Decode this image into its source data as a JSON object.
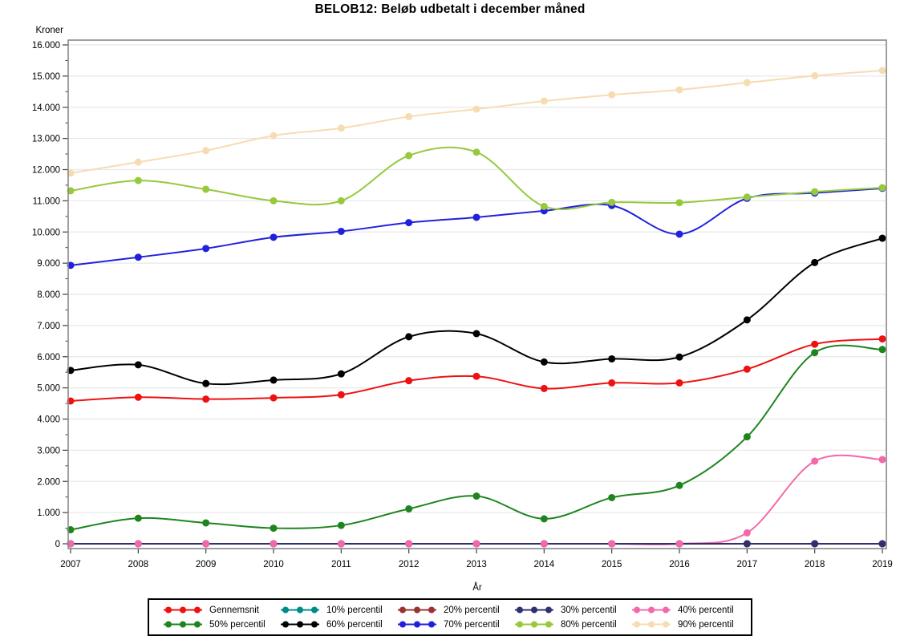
{
  "page": {
    "title": "BELOB12: Beløb udbetalt i december måned"
  },
  "chart_data": {
    "type": "line",
    "title": "BELOB12: Beløb udbetalt i december måned",
    "ylabel": "Kroner",
    "xlabel": "År",
    "x": [
      2007,
      2008,
      2009,
      2010,
      2011,
      2012,
      2013,
      2014,
      2015,
      2016,
      2017,
      2018,
      2019
    ],
    "x_tick_labels": [
      "2007",
      "2008",
      "2009",
      "2010",
      "2011",
      "2012",
      "2013",
      "2014",
      "2015",
      "2016",
      "2017",
      "2018",
      "2019"
    ],
    "ylim": [
      0,
      16000
    ],
    "ytick_step": 1000,
    "ytick_minor_step": 500,
    "ytick_labels": [
      "0",
      "1.000",
      "2.000",
      "3.000",
      "4.000",
      "5.000",
      "6.000",
      "7.000",
      "8.000",
      "9.000",
      "10.000",
      "11.000",
      "12.000",
      "13.000",
      "14.000",
      "15.000",
      "16.000"
    ],
    "grid": true,
    "legend_position": "bottom",
    "smoothing": "spline",
    "series": [
      {
        "name": "Gennemsnit",
        "color": "#ee1111",
        "values": [
          4580,
          4700,
          4640,
          4680,
          4780,
          5230,
          5370,
          4980,
          5160,
          5160,
          5600,
          6400,
          6570
        ]
      },
      {
        "name": "10% percentil",
        "color": "#008b8b",
        "values": [
          0,
          0,
          0,
          0,
          0,
          0,
          0,
          0,
          0,
          0,
          0,
          0,
          0
        ]
      },
      {
        "name": "20% percentil",
        "color": "#993333",
        "values": [
          0,
          0,
          0,
          0,
          0,
          0,
          0,
          0,
          0,
          0,
          0,
          0,
          0
        ]
      },
      {
        "name": "30% percentil",
        "color": "#303070",
        "values": [
          0,
          0,
          0,
          0,
          0,
          0,
          0,
          0,
          0,
          0,
          0,
          0,
          0
        ]
      },
      {
        "name": "40% percentil",
        "color": "#f468aa",
        "values": [
          0,
          0,
          0,
          0,
          0,
          0,
          0,
          0,
          0,
          0,
          350,
          2650,
          2700
        ]
      },
      {
        "name": "50% percentil",
        "color": "#1e851e",
        "values": [
          450,
          820,
          670,
          500,
          590,
          1120,
          1530,
          800,
          1480,
          1870,
          3430,
          6130,
          6230
        ]
      },
      {
        "name": "60% percentil",
        "color": "#000000",
        "values": [
          5560,
          5740,
          5140,
          5250,
          5450,
          6640,
          6740,
          5830,
          5930,
          5990,
          7180,
          9020,
          9800
        ]
      },
      {
        "name": "70% percentil",
        "color": "#2121dd",
        "values": [
          8930,
          9190,
          9470,
          9830,
          10020,
          10300,
          10470,
          10680,
          10850,
          9930,
          11080,
          11250,
          11400
        ]
      },
      {
        "name": "80% percentil",
        "color": "#96c93c",
        "values": [
          11320,
          11650,
          11370,
          11000,
          11000,
          12450,
          12560,
          10820,
          10950,
          10940,
          11120,
          11290,
          11420
        ]
      },
      {
        "name": "90% percentil",
        "color": "#f7dcb2",
        "values": [
          11890,
          12240,
          12610,
          13090,
          13330,
          13700,
          13940,
          14200,
          14400,
          14560,
          14790,
          15010,
          15180
        ]
      }
    ],
    "colors": {
      "grid": "#e8e8e8",
      "frame": "#888888",
      "tick": "#404040",
      "text": "#000000"
    }
  }
}
